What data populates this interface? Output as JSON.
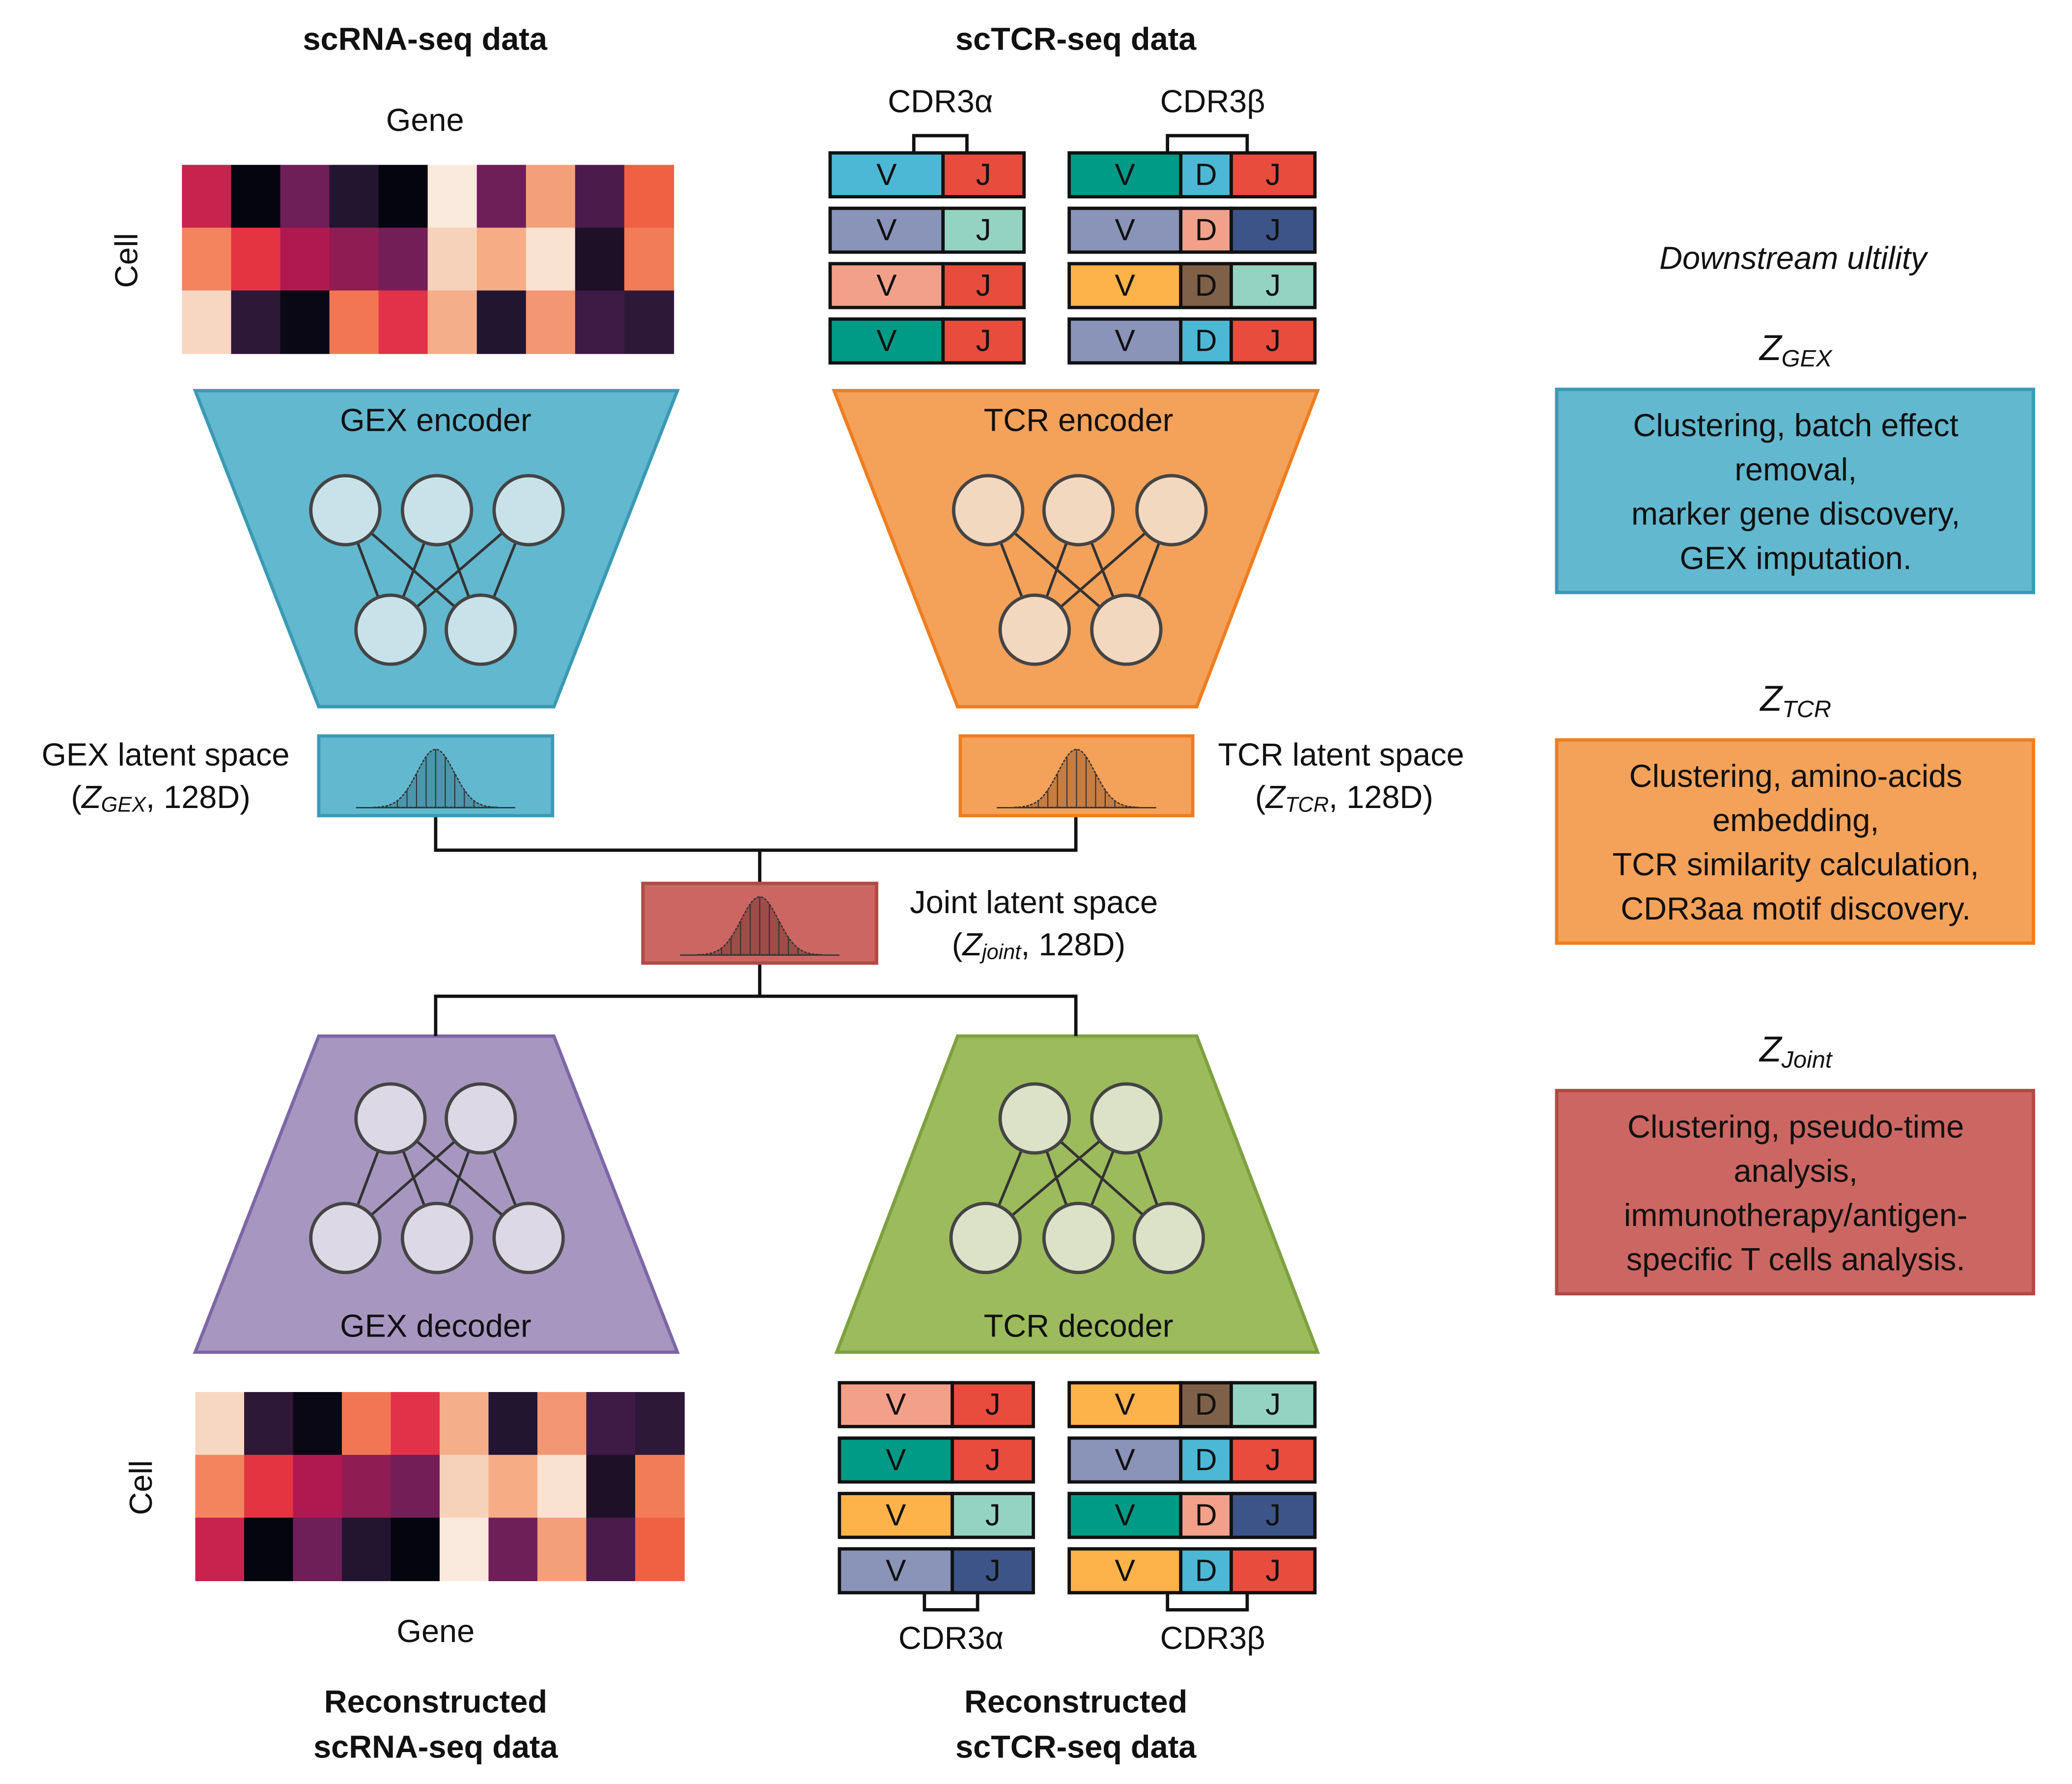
{
  "inputs": {
    "rna_title": "scRNA-seq data",
    "tcr_title": "scTCR-seq data",
    "gene": "Gene",
    "cell": "Cell",
    "cdr3_alpha": "CDR3α",
    "cdr3_beta": "CDR3β"
  },
  "segments": {
    "v": "V",
    "d": "D",
    "j": "J"
  },
  "encoders": {
    "gex": "GEX encoder",
    "tcr": "TCR encoder"
  },
  "latents": [
    {
      "label": "GEX latent space",
      "open": "(",
      "symbol": "Z",
      "sub": "GEX",
      "rest": ", 128D)"
    },
    {
      "label": "TCR latent space",
      "open": "(",
      "symbol": "Z",
      "sub": "TCR",
      "rest": ", 128D)"
    },
    {
      "label": "Joint latent space",
      "open": "(",
      "symbol": "Z",
      "sub": "joint",
      "rest": ", 128D)"
    }
  ],
  "decoders": {
    "gex": "GEX decoder",
    "tcr": "TCR decoder"
  },
  "outputs": {
    "rna_title": [
      "Reconstructed",
      "scRNA-seq data"
    ],
    "tcr_title": [
      "Reconstructed",
      "scTCR-seq data"
    ]
  },
  "downstream": {
    "heading": "Downstream ultility",
    "items": [
      {
        "symbol": "Z",
        "sub": "GEX",
        "lines": [
          "Clustering, batch effect",
          "removal,",
          "marker gene discovery,",
          "GEX imputation."
        ]
      },
      {
        "symbol": "Z",
        "sub": "TCR",
        "lines": [
          "Clustering, amino-acids",
          "embedding,",
          "TCR similarity calculation,",
          "CDR3aa motif discovery."
        ]
      },
      {
        "symbol": "Z",
        "sub": "Joint",
        "lines": [
          "Clustering, pseudo-time",
          "analysis,",
          "immunotherapy/antigen-",
          "specific T cells analysis."
        ]
      }
    ]
  }
}
